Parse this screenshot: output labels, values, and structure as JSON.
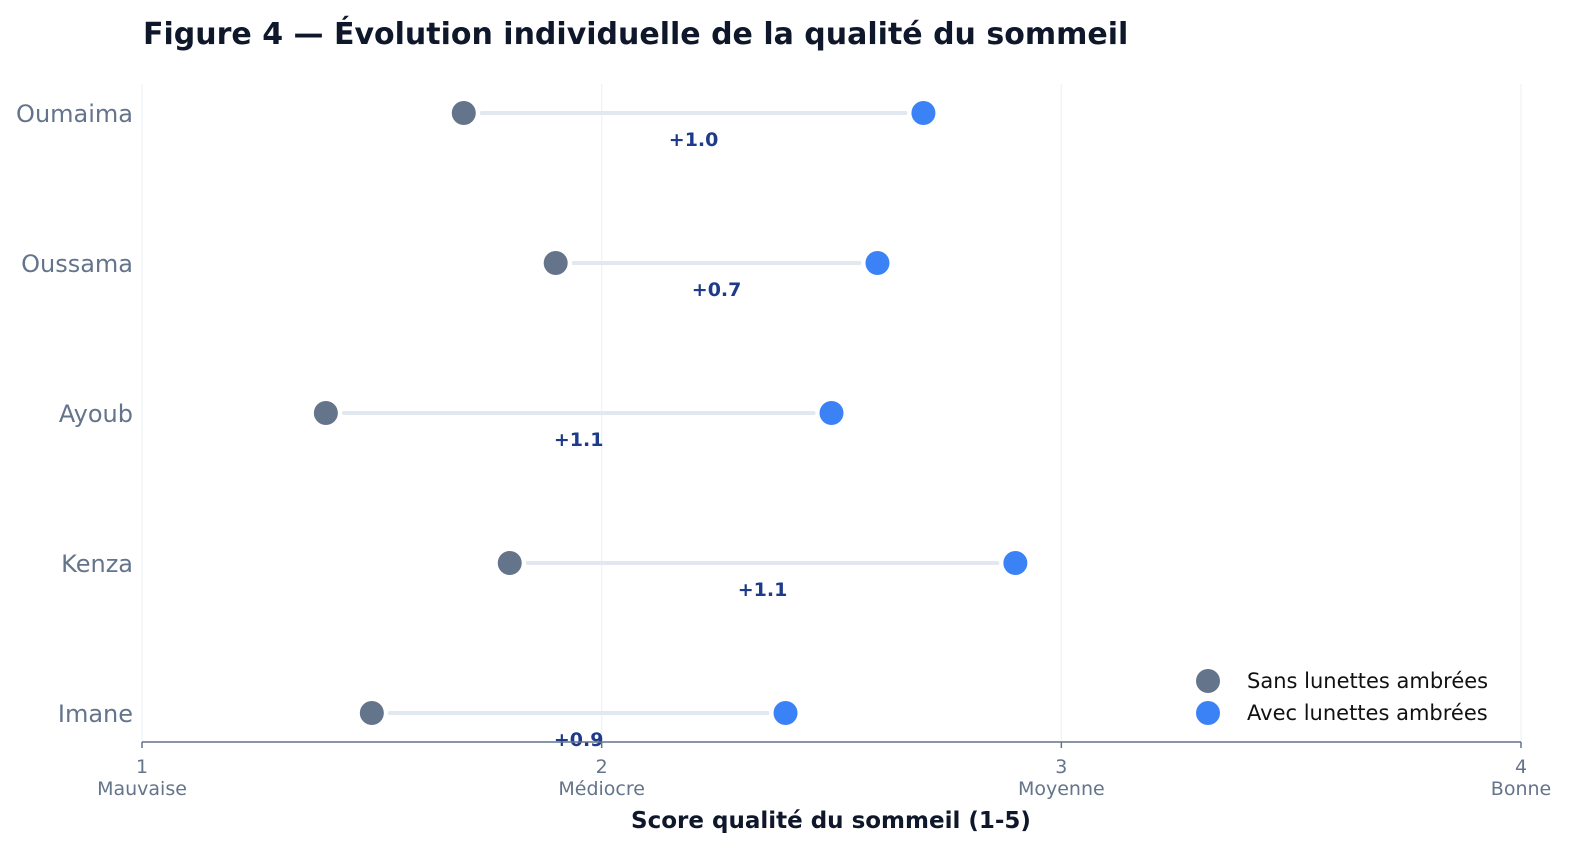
{
  "chart_data": {
    "type": "dumbbell",
    "title": "Figure 4 — Évolution individuelle de la qualité du sommeil",
    "xlabel": "Score qualité du sommeil (1-5)",
    "ylabel": "",
    "xlim": [
      1,
      4
    ],
    "xticks": [
      {
        "value": 1,
        "label": "1",
        "word": "Mauvaise"
      },
      {
        "value": 2,
        "label": "2",
        "word": "Médiocre"
      },
      {
        "value": 3,
        "label": "3",
        "word": "Moyenne"
      },
      {
        "value": 4,
        "label": "4",
        "word": "Bonne"
      }
    ],
    "categories": [
      "Oumaima",
      "Oussama",
      "Ayoub",
      "Kenza",
      "Imane"
    ],
    "series": [
      {
        "name": "Sans lunettes ambrées",
        "color": "#64748b",
        "values": [
          1.7,
          1.9,
          1.4,
          1.8,
          1.5
        ]
      },
      {
        "name": "Avec lunettes ambrées",
        "color": "#3b82f6",
        "values": [
          2.7,
          2.6,
          2.5,
          2.9,
          2.4
        ]
      }
    ],
    "deltas": [
      "+1.0",
      "+0.7",
      "+1.1",
      "+1.1",
      "+0.9"
    ],
    "grid": "vertical",
    "legend_position": "bottom-right",
    "connector_color": "#e2e8f0",
    "delta_color": "#1e3a8a"
  }
}
